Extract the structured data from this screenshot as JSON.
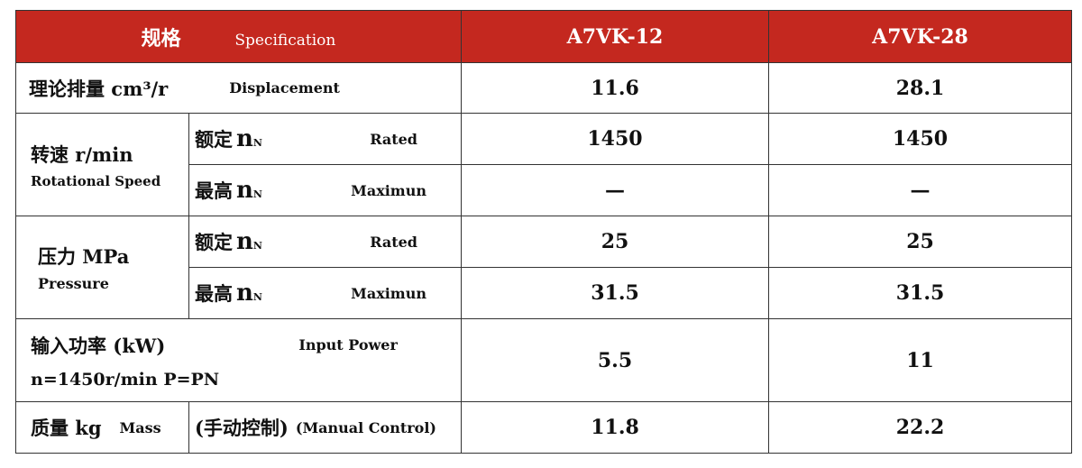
{
  "header": {
    "spec_cn": "规格",
    "spec_en": "Specification",
    "col1": "A7VK-12",
    "col2": "A7VK-28"
  },
  "rows": {
    "displacement": {
      "label_cn": "理论排量 cm³/r",
      "label_en": "Displacement",
      "v1": "11.6",
      "v2": "28.1"
    },
    "speed": {
      "label_cn": "转速 r/min",
      "label_en": "Rotational Speed",
      "rated_cn": "额定",
      "rated_sym": "n",
      "rated_sub": "N",
      "rated_en": "Rated",
      "rated_v1": "1450",
      "rated_v2": "1450",
      "max_cn": "最高",
      "max_sym": "n",
      "max_sub": "N",
      "max_en": "Maximun",
      "max_v1": "—",
      "max_v2": "—"
    },
    "pressure": {
      "label_cn": "压力 MPa",
      "label_en": "Pressure",
      "rated_cn": "额定",
      "rated_sym": "n",
      "rated_sub": "N",
      "rated_en": "Rated",
      "rated_v1": "25",
      "rated_v2": "25",
      "max_cn": "最高",
      "max_sym": "n",
      "max_sub": "N",
      "max_en": "Maximun",
      "max_v1": "31.5",
      "max_v2": "31.5"
    },
    "power": {
      "label_cn": "输入功率 (kW)",
      "label_en": "Input Power",
      "condition": "n=1450r/min  P=PN",
      "v1": "5.5",
      "v2": "11"
    },
    "mass": {
      "label_cn": "质量 kg",
      "label_en": "Mass",
      "control_cn": "(手动控制)",
      "control_en": "(Manual Control)",
      "v1": "11.8",
      "v2": "22.2"
    }
  },
  "colors": {
    "header_bg": "#c4281f",
    "header_text": "#ffffff",
    "border": "#333333"
  }
}
